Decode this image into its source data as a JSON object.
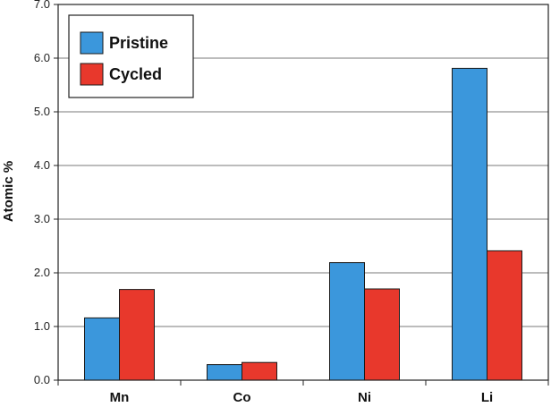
{
  "chart_data": {
    "type": "bar",
    "title": "",
    "xlabel": "",
    "ylabel": "Atomic %",
    "ylim": [
      0,
      7
    ],
    "yticks": [
      "0.0",
      "1.0",
      "2.0",
      "3.0",
      "4.0",
      "5.0",
      "6.0",
      "7.0"
    ],
    "grid": true,
    "legend_position": "top-left",
    "categories": [
      "Mn",
      "Co",
      "Ni",
      "Li"
    ],
    "series": [
      {
        "name": "Pristine",
        "color": "#3b97dc",
        "values": [
          1.16,
          0.29,
          2.19,
          5.81
        ]
      },
      {
        "name": "Cycled",
        "color": "#e8382c",
        "values": [
          1.69,
          0.33,
          1.7,
          2.41
        ]
      }
    ]
  }
}
